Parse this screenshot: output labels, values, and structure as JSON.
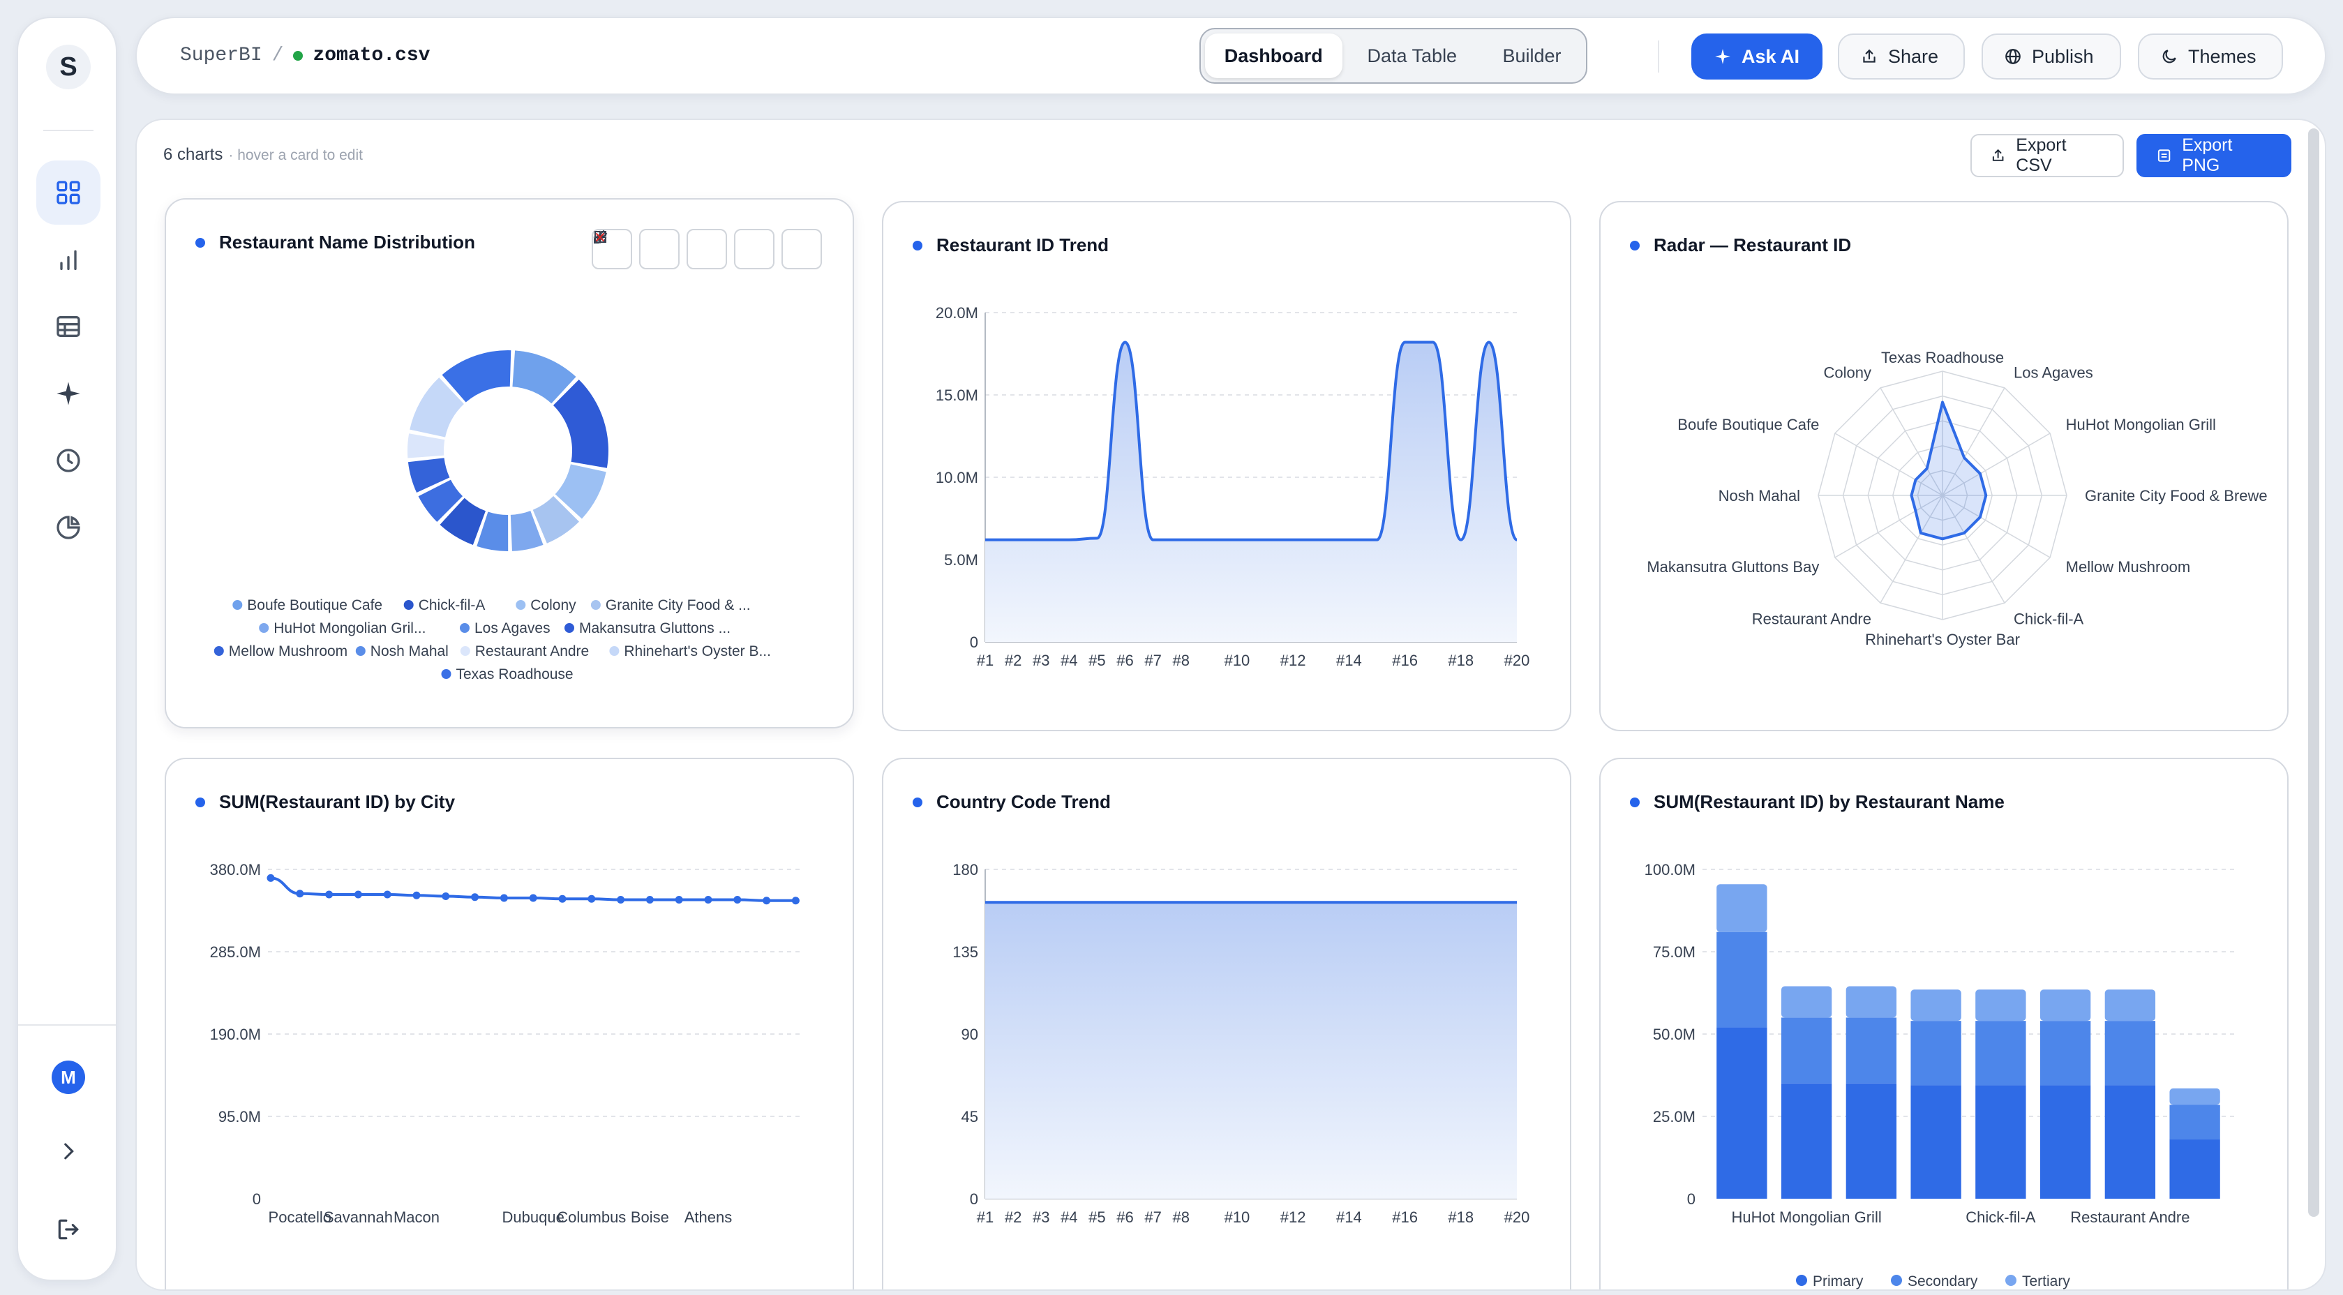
{
  "app": {
    "name": "SuperBI",
    "initial": "S",
    "file": "zomato.csv",
    "user_initial": "M"
  },
  "tabs": [
    {
      "label": "Dashboard",
      "active": true
    },
    {
      "label": "Data Table",
      "active": false
    },
    {
      "label": "Builder",
      "active": false
    }
  ],
  "header_buttons": {
    "ask_ai": "Ask AI",
    "share": "Share",
    "publish": "Publish",
    "themes": "Themes"
  },
  "dashboard": {
    "count": "6 charts",
    "hint": "· hover a card to edit",
    "export_csv": "Export CSV",
    "export_png": "Export PNG"
  },
  "colors": {
    "accent": "#2563eb",
    "status_dot": "#22a447",
    "close": "#dc2626"
  },
  "rail_icons": [
    "grid-icon",
    "bar-chart-icon",
    "table-icon",
    "sparkle-icon",
    "clock-icon",
    "pie-chart-icon"
  ],
  "chart_data": [
    {
      "type": "pie",
      "title": "Restaurant Name Distribution",
      "donut": true,
      "slices": [
        {
          "name": "Boufe Boutique Cafe",
          "value": 10,
          "color": "#6fa1ec"
        },
        {
          "name": "Chick-fil-A",
          "value": 14,
          "color": "#2f5bd6"
        },
        {
          "name": "Colony",
          "value": 8,
          "color": "#9cc0f3"
        },
        {
          "name": "Granite City Food & ...",
          "value": 6,
          "color": "#a7c4f0"
        },
        {
          "name": "HuHot Mongolian Gril...",
          "value": 5,
          "color": "#7ea8ee"
        },
        {
          "name": "Los Agaves",
          "value": 5,
          "color": "#5a8de8"
        },
        {
          "name": "Makansutra Gluttons ...",
          "value": 6,
          "color": "#2b56cc"
        },
        {
          "name": "Mellow Mushroom",
          "value": 5,
          "color": "#3d6ee0"
        },
        {
          "name": "Nosh Mahal",
          "value": 5,
          "color": "#3463d9"
        },
        {
          "name": "Restaurant Andre",
          "value": 4,
          "color": "#dbe6fb"
        },
        {
          "name": "Rhinehart's Oyster B...",
          "value": 9,
          "color": "#c5d8f8"
        },
        {
          "name": "Texas Roadhouse",
          "value": 11,
          "color": "#3a70e6"
        }
      ],
      "legend": [
        "Boufe Boutique Cafe",
        "Chick-fil-A",
        "Colony",
        "Granite City Food & ...",
        "HuHot Mongolian Gril...",
        "Los Agaves",
        "Makansutra Gluttons ...",
        "Mellow Mushroom",
        "Nosh Mahal",
        "Restaurant Andre",
        "Rhinehart's Oyster B...",
        "Texas Roadhouse"
      ],
      "legend_colors": [
        "#6fa1ec",
        "#2b56cc",
        "#9cc0f3",
        "#a7c4f0",
        "#7ea8ee",
        "#5a8de8",
        "#2f5bd6",
        "#3463d9",
        "#5a8de8",
        "#dbe6fb",
        "#c5d8f8",
        "#3a70e6"
      ]
    },
    {
      "type": "area",
      "title": "Restaurant ID Trend",
      "x": [
        "#1",
        "#2",
        "#3",
        "#4",
        "#5",
        "#6",
        "#7",
        "#8",
        "#9",
        "#10",
        "#11",
        "#12",
        "#13",
        "#14",
        "#15",
        "#16",
        "#17",
        "#18",
        "#19",
        "#20"
      ],
      "x_ticks": [
        "#1",
        "#2",
        "#3",
        "#4",
        "#5",
        "#6",
        "#7",
        "#8",
        "#10",
        "#12",
        "#14",
        "#16",
        "#18",
        "#20"
      ],
      "values": [
        6.2,
        6.2,
        6.2,
        6.2,
        6.3,
        18.2,
        6.2,
        6.2,
        6.2,
        6.2,
        6.2,
        6.2,
        6.2,
        6.2,
        6.2,
        18.2,
        18.2,
        6.2,
        18.2,
        6.2
      ],
      "y_ticks": [
        "0",
        "5.0M",
        "10.0M",
        "15.0M",
        "20.0M"
      ],
      "ylim": [
        0,
        20
      ],
      "unit": "M"
    },
    {
      "type": "radar",
      "title": "Radar — Restaurant ID",
      "axes": [
        "Texas Roadhouse",
        "Los Agaves",
        "HuHot Mongolian Grill",
        "Granite City Food & Brewe",
        "Mellow Mushroom",
        "Chick-fil-A",
        "Rhinehart's Oyster Bar",
        "Restaurant Andre",
        "Makansutra Gluttons Bay",
        "Nosh Mahal",
        "Boufe Boutique Cafe",
        "Colony"
      ],
      "values": [
        0.75,
        0.35,
        0.35,
        0.35,
        0.35,
        0.35,
        0.35,
        0.35,
        0.25,
        0.25,
        0.25,
        0.25
      ],
      "rings": 5
    },
    {
      "type": "line",
      "title": "SUM(Restaurant ID) by City",
      "values": [
        370,
        352,
        351,
        351,
        351,
        350,
        349,
        348,
        347,
        347,
        346,
        346,
        345,
        345,
        345,
        345,
        345,
        344,
        344
      ],
      "x_ticks": [
        {
          "i": 1,
          "label": "Pocatello"
        },
        {
          "i": 3,
          "label": "Savannah"
        },
        {
          "i": 5,
          "label": "Macon"
        },
        {
          "i": 9,
          "label": "Dubuque"
        },
        {
          "i": 11,
          "label": "Columbus"
        },
        {
          "i": 13,
          "label": "Boise"
        },
        {
          "i": 15,
          "label": "Athens"
        }
      ],
      "y_ticks": [
        "0",
        "95.0M",
        "190.0M",
        "285.0M",
        "380.0M"
      ],
      "ylim": [
        0,
        380
      ]
    },
    {
      "type": "area",
      "title": "Country Code Trend",
      "x": [
        "#1",
        "#2",
        "#3",
        "#4",
        "#5",
        "#6",
        "#7",
        "#8",
        "#9",
        "#10",
        "#11",
        "#12",
        "#13",
        "#14",
        "#15",
        "#16",
        "#17",
        "#18",
        "#19",
        "#20"
      ],
      "x_ticks": [
        "#1",
        "#2",
        "#3",
        "#4",
        "#5",
        "#6",
        "#7",
        "#8",
        "#10",
        "#12",
        "#14",
        "#16",
        "#18",
        "#20"
      ],
      "values": [
        162,
        162,
        162,
        162,
        162,
        162,
        162,
        162,
        162,
        162,
        162,
        162,
        162,
        162,
        162,
        162,
        162,
        162,
        162,
        162
      ],
      "y_ticks": [
        "0",
        "45",
        "90",
        "135",
        "180"
      ],
      "ylim": [
        0,
        180
      ]
    },
    {
      "type": "bar",
      "title": "SUM(Restaurant ID) by Restaurant Name",
      "stacked": true,
      "categories": [
        "",
        "HuHot Mongolian Grill",
        "",
        "",
        "Chick-fil-A",
        "",
        "Restaurant Andre",
        ""
      ],
      "x_labels": [
        "HuHot Mongolian Grill",
        "Chick-fil-A",
        "Restaurant Andre"
      ],
      "series": [
        {
          "name": "Primary",
          "values": [
            52,
            35,
            35,
            34.5,
            34.5,
            34.5,
            34.5,
            18
          ],
          "color": "#2f6be6"
        },
        {
          "name": "Secondary",
          "values": [
            29,
            20,
            20,
            19.5,
            19.5,
            19.5,
            19.5,
            10.5
          ],
          "color": "#4d86ea"
        },
        {
          "name": "Tertiary",
          "values": [
            14.5,
            9.5,
            9.5,
            9.5,
            9.5,
            9.5,
            9.5,
            5
          ],
          "color": "#78a6f0"
        }
      ],
      "y_ticks": [
        "0",
        "25.0M",
        "50.0M",
        "75.0M",
        "100.0M"
      ],
      "ylim": [
        0,
        100
      ]
    }
  ]
}
